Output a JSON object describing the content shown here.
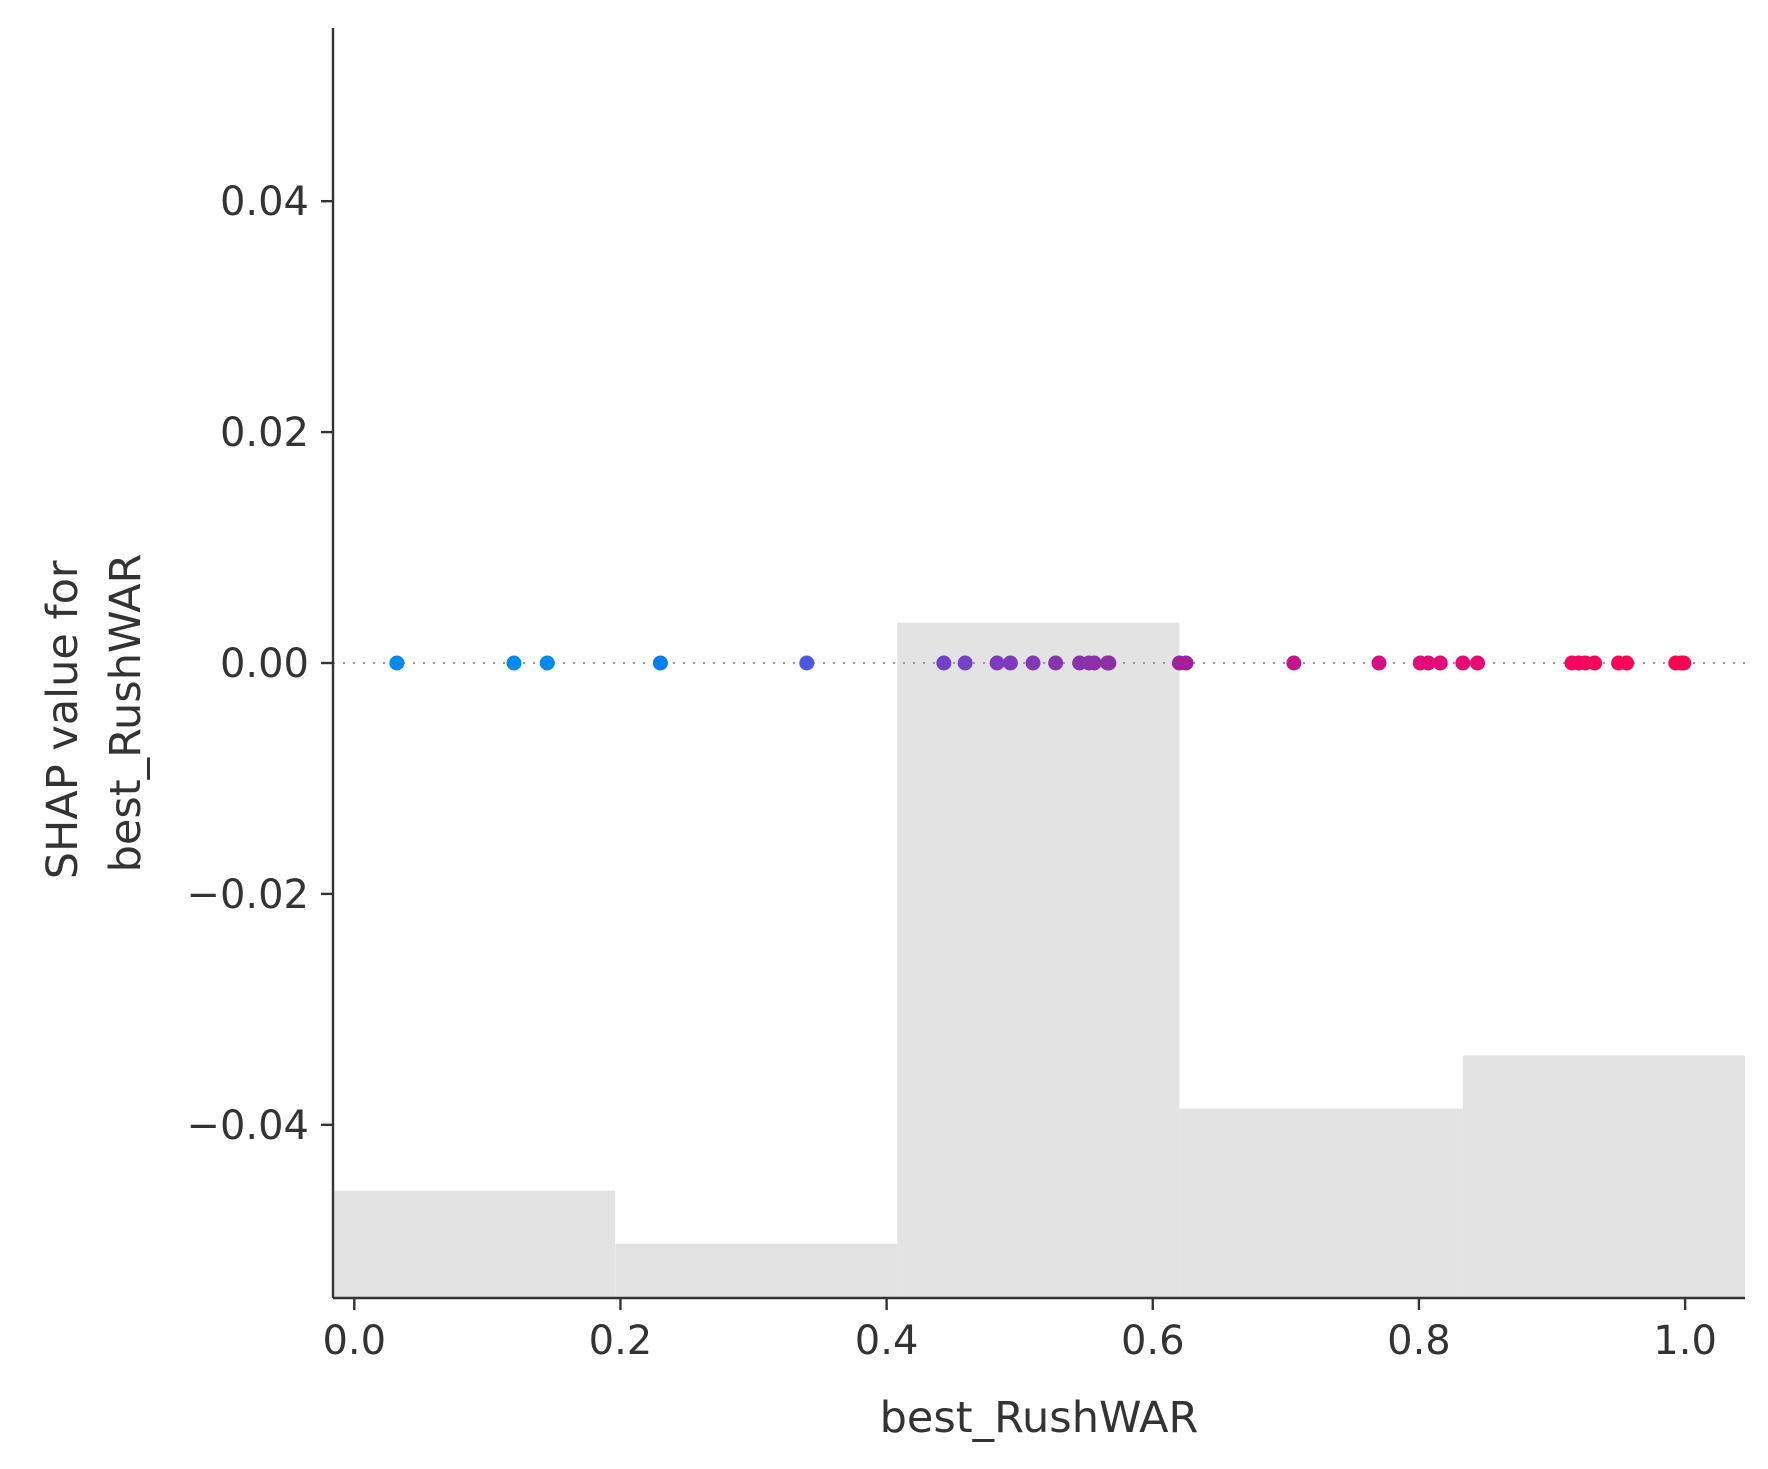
{
  "chart_data": {
    "type": "scatter",
    "title": "",
    "xlabel": "best_RushWAR",
    "ylabel_lines": [
      "SHAP value for",
      "best_RushWAR"
    ],
    "xlim": [
      -0.016,
      1.045
    ],
    "ylim": [
      -0.055,
      0.055
    ],
    "x_ticks": [
      {
        "value": 0.0,
        "label": "0.0"
      },
      {
        "value": 0.2,
        "label": "0.2"
      },
      {
        "value": 0.4,
        "label": "0.4"
      },
      {
        "value": 0.6,
        "label": "0.6"
      },
      {
        "value": 0.8,
        "label": "0.8"
      },
      {
        "value": 1.0,
        "label": "1.0"
      }
    ],
    "y_ticks": [
      {
        "value": 0.04,
        "label": "0.04"
      },
      {
        "value": 0.02,
        "label": "0.02"
      },
      {
        "value": 0.0,
        "label": "0.00"
      },
      {
        "value": -0.02,
        "label": "−0.02"
      },
      {
        "value": -0.04,
        "label": "−0.04"
      }
    ],
    "zero_line": {
      "y": 0.0,
      "style": "dotted",
      "color": "#999999"
    },
    "histogram": {
      "color": "#e3e3e3",
      "bins": [
        {
          "x0": -0.016,
          "x1": 0.196,
          "top": -0.0457
        },
        {
          "x0": 0.196,
          "x1": 0.408,
          "top": -0.0503
        },
        {
          "x0": 0.408,
          "x1": 0.62,
          "top": 0.0035
        },
        {
          "x0": 0.62,
          "x1": 0.833,
          "top": -0.0386
        },
        {
          "x0": 0.833,
          "x1": 1.045,
          "top": -0.034
        }
      ]
    },
    "points": [
      {
        "x": 0.032,
        "y": 0.0,
        "color": "#008bf0"
      },
      {
        "x": 0.12,
        "y": 0.0,
        "color": "#008bf0"
      },
      {
        "x": 0.145,
        "y": 0.0,
        "color": "#008bf0"
      },
      {
        "x": 0.23,
        "y": 0.0,
        "color": "#0080f0"
      },
      {
        "x": 0.34,
        "y": 0.0,
        "color": "#4d57e0"
      },
      {
        "x": 0.443,
        "y": 0.0,
        "color": "#6e43cc"
      },
      {
        "x": 0.459,
        "y": 0.0,
        "color": "#7441c7"
      },
      {
        "x": 0.483,
        "y": 0.0,
        "color": "#7c3bc0"
      },
      {
        "x": 0.493,
        "y": 0.0,
        "color": "#7e39bc"
      },
      {
        "x": 0.51,
        "y": 0.0,
        "color": "#8237b6"
      },
      {
        "x": 0.527,
        "y": 0.0,
        "color": "#8535b0"
      },
      {
        "x": 0.545,
        "y": 0.0,
        "color": "#8833ab"
      },
      {
        "x": 0.552,
        "y": 0.0,
        "color": "#8a32a8"
      },
      {
        "x": 0.556,
        "y": 0.0,
        "color": "#8b31a6"
      },
      {
        "x": 0.566,
        "y": 0.0,
        "color": "#8d30a3"
      },
      {
        "x": 0.567,
        "y": 0.0,
        "color": "#8d30a3"
      },
      {
        "x": 0.62,
        "y": 0.0,
        "color": "#a1209d"
      },
      {
        "x": 0.625,
        "y": 0.0,
        "color": "#a31e9b"
      },
      {
        "x": 0.706,
        "y": 0.0,
        "color": "#c3158e"
      },
      {
        "x": 0.77,
        "y": 0.0,
        "color": "#d90d82"
      },
      {
        "x": 0.801,
        "y": 0.0,
        "color": "#e20a7c"
      },
      {
        "x": 0.807,
        "y": 0.0,
        "color": "#e40a7a"
      },
      {
        "x": 0.816,
        "y": 0.0,
        "color": "#e60978"
      },
      {
        "x": 0.833,
        "y": 0.0,
        "color": "#ea0874"
      },
      {
        "x": 0.844,
        "y": 0.0,
        "color": "#ec0772"
      },
      {
        "x": 0.915,
        "y": 0.0,
        "color": "#f90462"
      },
      {
        "x": 0.92,
        "y": 0.0,
        "color": "#fa0461"
      },
      {
        "x": 0.925,
        "y": 0.0,
        "color": "#fb0460"
      },
      {
        "x": 0.932,
        "y": 0.0,
        "color": "#fc035e"
      },
      {
        "x": 0.95,
        "y": 0.0,
        "color": "#fe035b"
      },
      {
        "x": 0.956,
        "y": 0.0,
        "color": "#ff025a"
      },
      {
        "x": 0.993,
        "y": 0.0,
        "color": "#ff0254"
      },
      {
        "x": 0.997,
        "y": 0.0,
        "color": "#ff0253"
      },
      {
        "x": 0.999,
        "y": 0.0,
        "color": "#ff0253"
      }
    ]
  }
}
